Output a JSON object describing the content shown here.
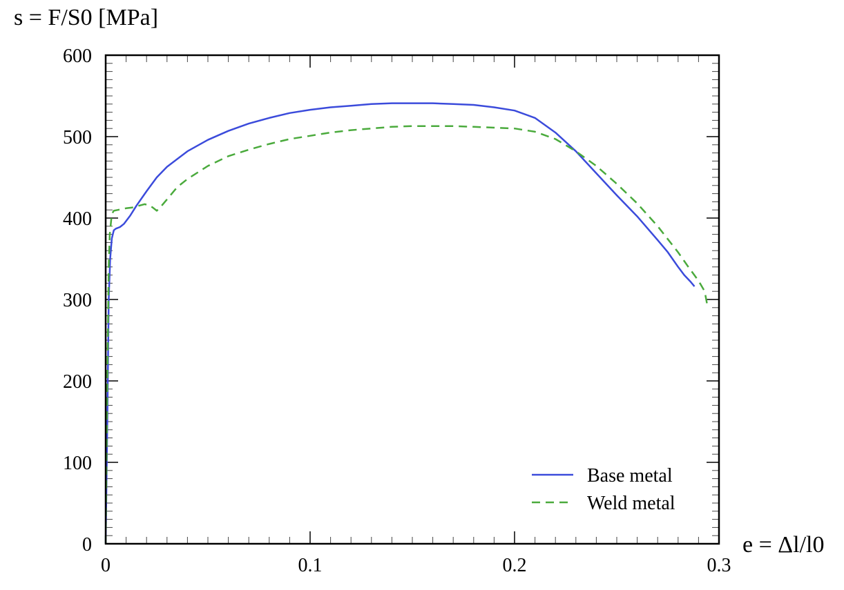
{
  "chart_data": {
    "type": "line",
    "xlabel": "e = Δl/l0",
    "ylabel": "s = F/S0 [MPa]",
    "xlim": [
      0,
      0.3
    ],
    "ylim": [
      0,
      600
    ],
    "xticks": [
      0,
      0.1,
      0.2,
      0.3
    ],
    "xtick_labels": [
      "0",
      "0.1",
      "0.2",
      "0.3"
    ],
    "yticks": [
      0,
      100,
      200,
      300,
      400,
      500,
      600
    ],
    "ytick_labels": [
      "0",
      "100",
      "200",
      "300",
      "400",
      "500",
      "600"
    ],
    "grid": false,
    "legend_position": "bottom-right",
    "series": [
      {
        "name": "Base metal",
        "color": "#3b4bdb",
        "style": "solid",
        "x": [
          0,
          0.0008,
          0.0015,
          0.0022,
          0.003,
          0.004,
          0.005,
          0.007,
          0.009,
          0.012,
          0.015,
          0.02,
          0.025,
          0.03,
          0.04,
          0.05,
          0.06,
          0.07,
          0.08,
          0.09,
          0.1,
          0.11,
          0.12,
          0.13,
          0.14,
          0.15,
          0.16,
          0.17,
          0.18,
          0.19,
          0.2,
          0.21,
          0.22,
          0.23,
          0.24,
          0.25,
          0.26,
          0.27,
          0.275,
          0.28,
          0.283,
          0.286,
          0.288
        ],
        "y": [
          0,
          150,
          300,
          350,
          375,
          385,
          387,
          389,
          393,
          403,
          415,
          433,
          450,
          463,
          482,
          496,
          507,
          516,
          523,
          529,
          533,
          536,
          538,
          540,
          541,
          541,
          541,
          540,
          539,
          536,
          532,
          523,
          505,
          482,
          455,
          428,
          402,
          373,
          358,
          340,
          330,
          322,
          316
        ]
      },
      {
        "name": "Weld metal",
        "color": "#4aaa3c",
        "style": "dashed",
        "x": [
          0,
          0.0008,
          0.0015,
          0.002,
          0.003,
          0.004,
          0.006,
          0.008,
          0.01,
          0.013,
          0.016,
          0.019,
          0.021,
          0.023,
          0.025,
          0.027,
          0.03,
          0.035,
          0.04,
          0.05,
          0.06,
          0.07,
          0.08,
          0.09,
          0.1,
          0.11,
          0.12,
          0.13,
          0.14,
          0.15,
          0.16,
          0.17,
          0.18,
          0.19,
          0.2,
          0.21,
          0.22,
          0.23,
          0.24,
          0.25,
          0.26,
          0.27,
          0.28,
          0.285,
          0.29,
          0.293,
          0.2945
        ],
        "y": [
          0,
          200,
          340,
          380,
          405,
          409,
          410,
          411,
          412,
          413,
          415,
          417,
          416,
          413,
          409,
          414,
          423,
          438,
          448,
          464,
          476,
          484,
          491,
          497,
          501,
          505,
          508,
          510,
          512,
          513,
          513,
          513,
          512,
          511,
          510,
          506,
          497,
          482,
          464,
          442,
          418,
          390,
          358,
          340,
          323,
          310,
          290
        ]
      }
    ]
  }
}
